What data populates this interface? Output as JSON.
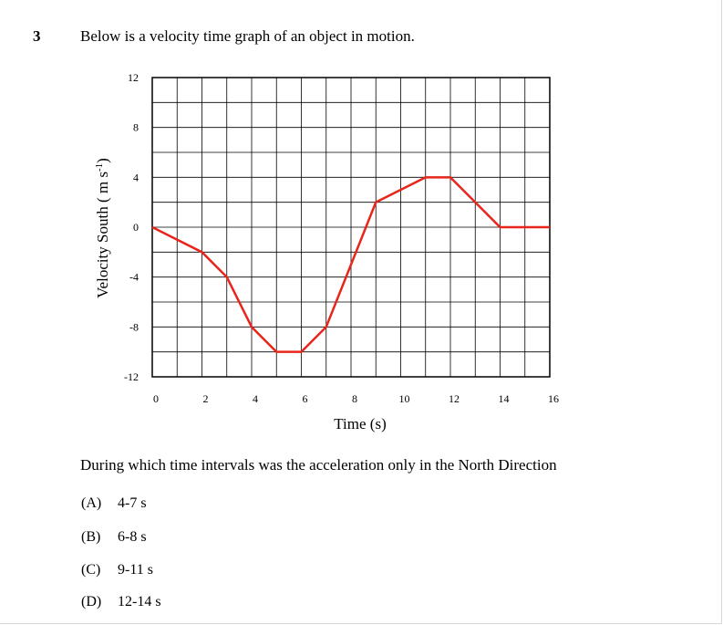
{
  "question": {
    "number": "3",
    "text": "Below is a velocity time graph of an object in motion.",
    "prompt": "During which time intervals was the acceleration only in the North Direction",
    "choices": [
      {
        "letter": "(A)",
        "text": "4-7 s"
      },
      {
        "letter": "(B)",
        "text": "6-8 s"
      },
      {
        "letter": "(C)",
        "text": "9-11 s"
      },
      {
        "letter": "(D)",
        "text": "12-14 s"
      }
    ]
  },
  "chart_data": {
    "type": "line",
    "xlabel": "Time (s)",
    "ylabel": "Velocity South ( m s-1)",
    "xlim": [
      0,
      16
    ],
    "ylim": [
      -12,
      12
    ],
    "x_ticks": [
      0,
      2,
      4,
      6,
      8,
      10,
      12,
      14,
      16
    ],
    "y_ticks": [
      12,
      8,
      4,
      0,
      -4,
      -8,
      -12
    ],
    "grid": true,
    "grid_step_x": 1,
    "grid_step_y": 2,
    "line_color": "#e8251b",
    "series": [
      {
        "x": [
          0,
          2,
          3,
          4,
          5,
          6,
          7,
          9,
          11,
          12,
          14,
          16
        ],
        "y": [
          0,
          -2,
          -4,
          -8,
          -10,
          -10,
          -8,
          2,
          4,
          4,
          0,
          0
        ]
      }
    ]
  }
}
